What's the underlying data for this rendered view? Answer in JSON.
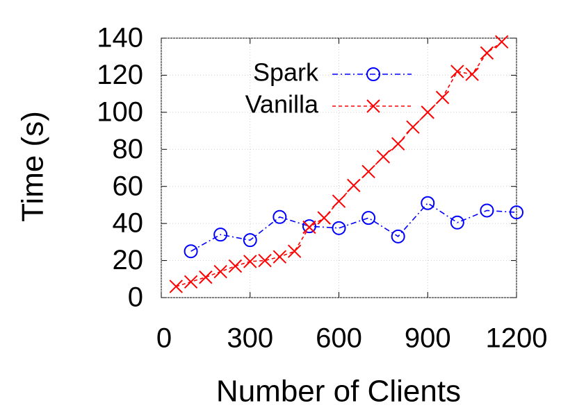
{
  "chart_data": {
    "type": "line",
    "x_label": "Number of Clients",
    "y_label": "Time (s)",
    "xlim": [
      0,
      1200
    ],
    "xticks": [
      0,
      300,
      600,
      900,
      1200
    ],
    "ylim": [
      0,
      140
    ],
    "yticks": [
      0,
      20,
      40,
      60,
      80,
      100,
      120,
      140
    ],
    "grid": true,
    "legend": "upper left",
    "series": [
      {
        "name": "Spark",
        "color": "#0000ff",
        "marker": "circle",
        "dash": "dash-dot",
        "x": [
          100,
          200,
          300,
          400,
          500,
          600,
          700,
          800,
          900,
          1000,
          1100,
          1200
        ],
        "values": [
          25,
          34,
          31,
          43.5,
          38.5,
          37.5,
          43,
          33,
          51,
          40.5,
          47,
          46
        ]
      },
      {
        "name": "Vanilla",
        "color": "#ff0000",
        "marker": "x",
        "dash": "dashed",
        "x": [
          50,
          100,
          150,
          200,
          250,
          300,
          350,
          400,
          450,
          500,
          550,
          600,
          650,
          700,
          750,
          800,
          850,
          900,
          950,
          1000,
          1050,
          1100,
          1150
        ],
        "values": [
          6,
          8.5,
          11,
          14,
          17,
          19.5,
          20,
          22,
          25,
          38,
          43,
          52,
          60.5,
          68,
          76,
          83,
          92,
          100,
          108,
          122,
          120.5,
          132,
          138
        ]
      }
    ]
  }
}
